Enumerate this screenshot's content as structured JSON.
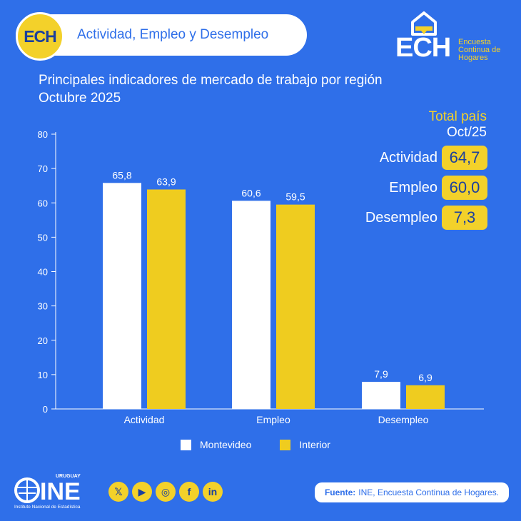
{
  "header": {
    "badge": "ECH",
    "title": "Actividad, Empleo y Desempleo"
  },
  "brand": {
    "letters": "ECH",
    "subtitle_lines": [
      "Encuesta",
      "Continua de",
      "Hogares"
    ]
  },
  "totals": {
    "title": "Total país",
    "period": "Oct/25",
    "rows": [
      {
        "label": "Actividad",
        "value": "64,7"
      },
      {
        "label": "Empleo",
        "value": "60,0"
      },
      {
        "label": "Desempleo",
        "value": "7,3"
      }
    ]
  },
  "footer": {
    "logo_country": "URUGUAY",
    "logo_name": "INE",
    "logo_sub": "Instituto Nacional de Estadística",
    "social": [
      "x-icon",
      "youtube-icon",
      "instagram-icon",
      "facebook-icon",
      "linkedin-icon"
    ],
    "source_label": "Fuente:",
    "source_text": "INE, Encuesta Continua de Hogares."
  },
  "colors": {
    "background": "#2f6fe9",
    "accent": "#f3d12a",
    "montevideo": "#ffffff",
    "interior": "#efcc1f"
  },
  "chart_data": {
    "type": "bar",
    "title": "Principales indicadores de mercado de trabajo por región",
    "subtitle": "Octubre 2025",
    "categories": [
      "Actividad",
      "Empleo",
      "Desempleo"
    ],
    "series": [
      {
        "name": "Montevideo",
        "values": [
          65.8,
          60.6,
          7.9
        ],
        "labels": [
          "65,8",
          "60,6",
          "7,9"
        ]
      },
      {
        "name": "Interior",
        "values": [
          63.9,
          59.5,
          6.9
        ],
        "labels": [
          "63,9",
          "59,5",
          "6,9"
        ]
      }
    ],
    "ylim": [
      0,
      80
    ],
    "yticks": [
      0,
      10,
      20,
      30,
      40,
      50,
      60,
      70,
      80
    ],
    "legend": "bottom",
    "grid": false
  }
}
